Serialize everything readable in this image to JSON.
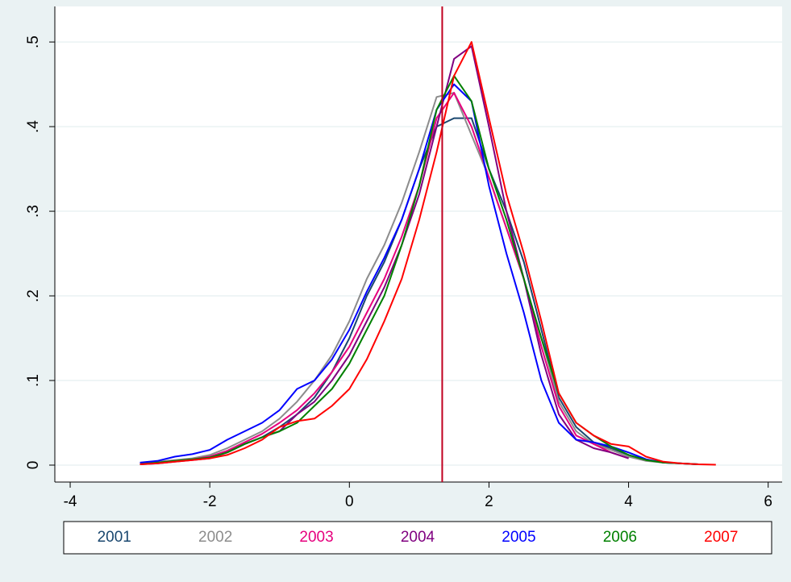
{
  "chart_data": {
    "type": "line",
    "x": [
      -3,
      -2.75,
      -2.5,
      -2.25,
      -2,
      -1.75,
      -1.5,
      -1.25,
      -1,
      -0.75,
      -0.5,
      -0.25,
      0,
      0.25,
      0.5,
      0.75,
      1,
      1.25,
      1.5,
      1.75,
      2,
      2.25,
      2.5,
      2.75,
      3,
      3.25,
      3.5,
      3.75,
      4,
      4.25,
      4.5,
      4.75,
      5,
      5.25
    ],
    "series": [
      {
        "name": "2001",
        "color": "#1a476f",
        "values": [
          0.002,
          0.003,
          0.005,
          0.007,
          0.01,
          0.016,
          0.025,
          0.033,
          0.045,
          0.06,
          0.08,
          0.11,
          0.15,
          0.2,
          0.24,
          0.29,
          0.35,
          0.4,
          0.41,
          0.41,
          0.35,
          0.3,
          0.24,
          0.16,
          0.08,
          0.045,
          0.027,
          0.02,
          0.012,
          0.006,
          0.003,
          0.002,
          0.001,
          null
        ]
      },
      {
        "name": "2002",
        "color": "#8c8c8c",
        "values": [
          0.002,
          0.004,
          0.006,
          0.008,
          0.012,
          0.02,
          0.03,
          0.04,
          0.055,
          0.075,
          0.1,
          0.13,
          0.17,
          0.22,
          0.26,
          0.31,
          0.37,
          0.435,
          0.44,
          0.39,
          0.34,
          0.28,
          0.22,
          0.15,
          0.075,
          0.04,
          0.025,
          0.018,
          0.01,
          0.005,
          0.003,
          null,
          null,
          null
        ]
      },
      {
        "name": "2003",
        "color": "#e6007e",
        "values": [
          0.001,
          0.003,
          0.005,
          0.007,
          0.01,
          0.017,
          0.027,
          0.037,
          0.05,
          0.065,
          0.085,
          0.11,
          0.14,
          0.18,
          0.22,
          0.27,
          0.33,
          0.41,
          0.44,
          0.4,
          0.34,
          0.28,
          0.22,
          0.14,
          0.07,
          0.035,
          0.025,
          0.015,
          0.008,
          null,
          null,
          null,
          null,
          null
        ]
      },
      {
        "name": "2004",
        "color": "#800080",
        "values": [
          0.001,
          0.002,
          0.004,
          0.006,
          0.008,
          0.015,
          0.025,
          0.033,
          0.04,
          0.06,
          0.075,
          0.1,
          0.13,
          0.17,
          0.21,
          0.26,
          0.32,
          0.4,
          0.48,
          0.495,
          0.4,
          0.3,
          0.22,
          0.13,
          0.06,
          0.03,
          0.02,
          0.015,
          0.008,
          null,
          null,
          null,
          null,
          null
        ]
      },
      {
        "name": "2005",
        "color": "#0000ff",
        "values": [
          0.003,
          0.005,
          0.01,
          0.013,
          0.018,
          0.03,
          0.04,
          0.05,
          0.065,
          0.09,
          0.1,
          0.125,
          0.16,
          0.205,
          0.245,
          0.29,
          0.35,
          0.42,
          0.45,
          0.43,
          0.33,
          0.25,
          0.18,
          0.1,
          0.05,
          0.03,
          0.027,
          0.022,
          0.015,
          0.007,
          0.003,
          0.002,
          0.001,
          null
        ]
      },
      {
        "name": "2006",
        "color": "#008000",
        "values": [
          0.001,
          0.003,
          0.005,
          0.007,
          0.009,
          0.015,
          0.025,
          0.033,
          0.04,
          0.05,
          0.07,
          0.09,
          0.12,
          0.16,
          0.2,
          0.26,
          0.33,
          0.42,
          0.46,
          0.43,
          0.35,
          0.29,
          0.22,
          0.15,
          0.085,
          0.05,
          0.035,
          0.022,
          0.012,
          0.006,
          0.003,
          0.002,
          0.001,
          null
        ]
      },
      {
        "name": "2007",
        "color": "#ff0000",
        "values": [
          0.001,
          0.002,
          0.004,
          0.006,
          0.008,
          0.012,
          0.02,
          0.03,
          0.045,
          0.052,
          0.055,
          0.07,
          0.09,
          0.125,
          0.17,
          0.22,
          0.29,
          0.37,
          0.46,
          0.5,
          0.41,
          0.32,
          0.25,
          0.17,
          0.085,
          0.05,
          0.035,
          0.025,
          0.022,
          0.01,
          0.004,
          0.002,
          0.001,
          0.0005
        ]
      }
    ],
    "xline": 1.33,
    "xline_color": "#c00020",
    "xlim": [
      -4.22,
      6.2
    ],
    "xticks": [
      -4,
      -2,
      0,
      2,
      4,
      6
    ],
    "ylim": [
      -0.02,
      0.542
    ],
    "yticks": [
      0,
      {
        "value": 0.1,
        "label": ".1"
      },
      {
        "value": 0.2,
        "label": ".2"
      },
      {
        "value": 0.3,
        "label": ".3"
      },
      {
        "value": 0.4,
        "label": ".4"
      },
      {
        "value": 0.5,
        "label": ".5"
      }
    ],
    "grid": true
  }
}
